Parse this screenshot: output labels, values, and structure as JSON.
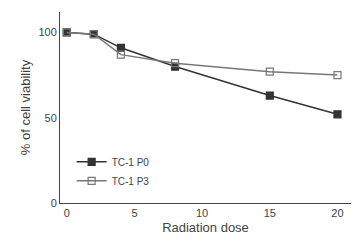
{
  "chart_data": {
    "type": "line",
    "x": [
      0,
      2,
      4,
      8,
      15,
      20
    ],
    "series": [
      {
        "name": "TC-1 P0",
        "color": "#333333",
        "marker": "square",
        "values": [
          100,
          99,
          91,
          80,
          63,
          52
        ]
      },
      {
        "name": "TC-1 P3",
        "color": "#777777",
        "marker": "square-open",
        "values": [
          100,
          99,
          87,
          82,
          77,
          75
        ]
      }
    ],
    "xlabel": "Radiation dose",
    "ylabel": "% of cell viability",
    "xlim": [
      -0.5,
      21
    ],
    "ylim": [
      0,
      112
    ],
    "xticks": [
      0,
      5,
      10,
      15,
      20
    ],
    "yticks": [
      0,
      50,
      100
    ],
    "grid": false,
    "legend": "lower left"
  }
}
